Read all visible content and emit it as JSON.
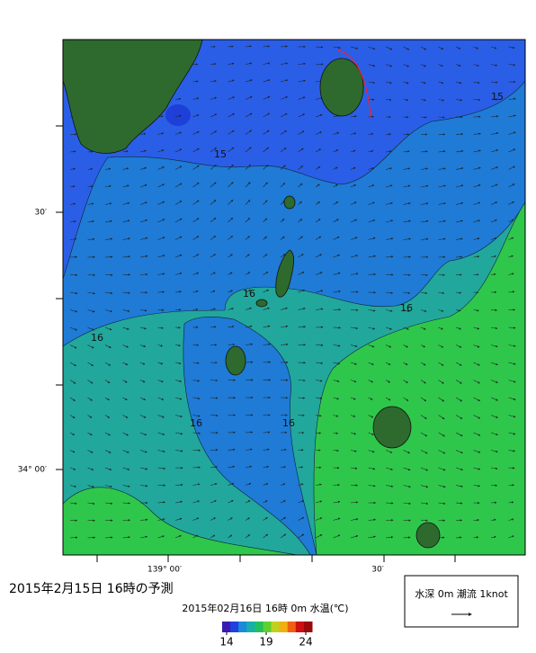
{
  "map": {
    "lat_labels": [
      "30′",
      "34° 00′"
    ],
    "lon_labels": [
      "139° 00′",
      "30′"
    ],
    "contour_labels": [
      "15",
      "15",
      "16",
      "16",
      "16",
      "16",
      "16"
    ]
  },
  "title": "2015年2月15日 16時の予測",
  "subtitle": "2015年02月16日 16時 0m 水温(℃)",
  "colorbar": {
    "range": [
      14,
      24
    ],
    "ticks": [
      14,
      19,
      24
    ]
  },
  "legend": {
    "label": "水深 0m 潮流 1knot"
  }
}
